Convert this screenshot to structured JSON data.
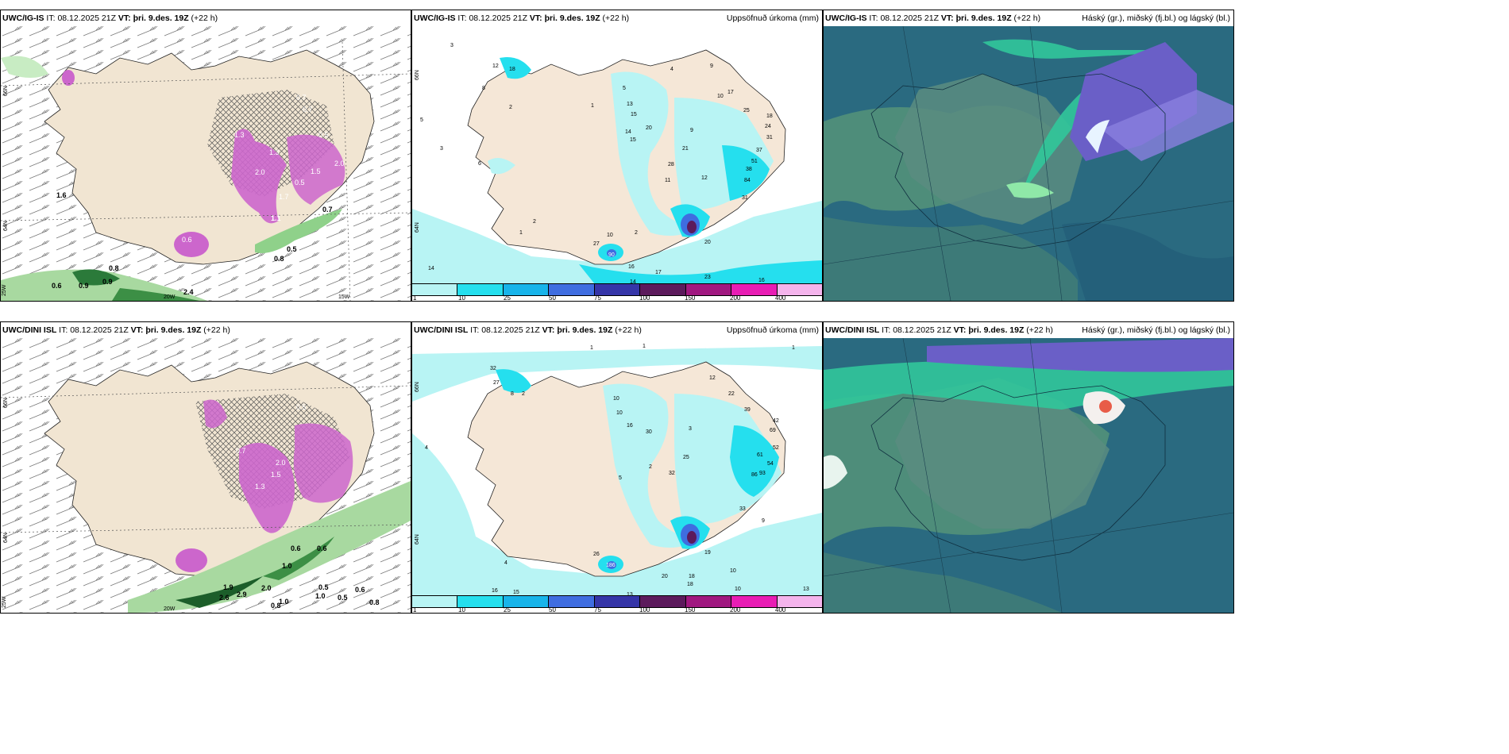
{
  "panels": [
    {
      "model": "UWC/IG-IS",
      "it_label": "IT:",
      "it": "08.12.2025 21Z",
      "vt_label": "VT:",
      "vt": "þri. 9.des. 19Z",
      "lead": "(+22 h)",
      "right_title": ""
    },
    {
      "model": "UWC/IG-IS",
      "it_label": "IT:",
      "it": "08.12.2025 21Z",
      "vt_label": "VT:",
      "vt": "þri. 9.des. 19Z",
      "lead": "(+22 h)",
      "right_title": "Uppsöfnuð úrkoma (mm)"
    },
    {
      "model": "UWC/IG-IS",
      "it_label": "IT:",
      "it": "08.12.2025 21Z",
      "vt_label": "VT:",
      "vt": "þri. 9.des. 19Z",
      "lead": "(+22 h)",
      "right_title": "Háský (gr.), miðský (fj.bl.) og lágský (bl.)"
    },
    {
      "model": "UWC/DINI ISL",
      "it_label": "IT:",
      "it": "08.12.2025 21Z",
      "vt_label": "VT:",
      "vt": "þri. 9.des. 19Z",
      "lead": "(+22 h)",
      "right_title": ""
    },
    {
      "model": "UWC/DINI ISL",
      "it_label": "IT:",
      "it": "08.12.2025 21Z",
      "vt_label": "VT:",
      "vt": "þri. 9.des. 19Z",
      "lead": "(+22 h)",
      "right_title": "Uppsöfnuð úrkoma (mm)"
    },
    {
      "model": "UWC/DINI ISL",
      "it_label": "IT:",
      "it": "08.12.2025 21Z",
      "vt_label": "VT:",
      "vt": "þri. 9.des. 19Z",
      "lead": "(+22 h)",
      "right_title": "Háský (gr.), miðský (fj.bl.) og lágský (bl.)"
    }
  ],
  "precip_legend": {
    "ticks": [
      "1",
      "10",
      "25",
      "50",
      "75",
      "100",
      "150",
      "200",
      "400"
    ],
    "colors": [
      "#b8f4f4",
      "#25dfee",
      "#18b4ea",
      "#3f6de0",
      "#3535a8",
      "#5c1a5c",
      "#a01880",
      "#e81db4",
      "#f4b4ec"
    ]
  },
  "grid_labels": {
    "top_left": {
      "lat1": "66N",
      "lat2": "64N",
      "lon1": "25W",
      "lon2": "20W",
      "lon3": "15W",
      "pv": [
        "0.8",
        "0.9",
        "0.6",
        "1.1",
        "0.8",
        "0.7",
        "0.5",
        "1.6",
        "2.4",
        "0.9",
        "0.7",
        "1.3",
        "1.5",
        "2.0",
        "0.5",
        "0.7",
        "1.7",
        "0.5",
        "1.3",
        "0.6",
        "2.0"
      ]
    },
    "bottom_left": {
      "lat1": "66N",
      "lat2": "64N",
      "lon1": "25W",
      "lon2": "20W",
      "pv": [
        "1.9",
        "2.0",
        "1.0",
        "0.6",
        "0.6",
        "1.0",
        "0.5",
        "0.5",
        "0.6",
        "0.8",
        "0.8",
        "2.9",
        "2.6",
        "1.0",
        "0.5",
        "1.5",
        "1.3",
        "0.7",
        "2.0"
      ]
    },
    "top_mid": {
      "lat1": "66N",
      "lat2": "64N",
      "totals": [
        "3",
        "12",
        "18",
        "8",
        "6",
        "5",
        "3",
        "2",
        "1",
        "5",
        "13",
        "15",
        "14",
        "15",
        "20",
        "4",
        "9",
        "17",
        "25",
        "18",
        "24",
        "31",
        "37",
        "51",
        "38",
        "84",
        "31",
        "12",
        "28",
        "11",
        "21",
        "9",
        "10",
        "2",
        "1",
        "16",
        "17",
        "14",
        "14",
        "23",
        "16",
        "27",
        "90",
        "10",
        "2",
        "20"
      ]
    },
    "bottom_mid": {
      "lat1": "66N",
      "lat2": "64N",
      "totals": [
        "4",
        "1",
        "1",
        "1",
        "32",
        "27",
        "8",
        "2",
        "12",
        "22",
        "39",
        "42",
        "69",
        "52",
        "54",
        "61",
        "86",
        "93",
        "33",
        "9",
        "18",
        "19",
        "20",
        "10",
        "10",
        "13",
        "13",
        "18",
        "15",
        "16",
        "4",
        "26",
        "186",
        "3",
        "10",
        "10",
        "16",
        "30",
        "25",
        "32",
        "5",
        "2"
      ]
    }
  }
}
